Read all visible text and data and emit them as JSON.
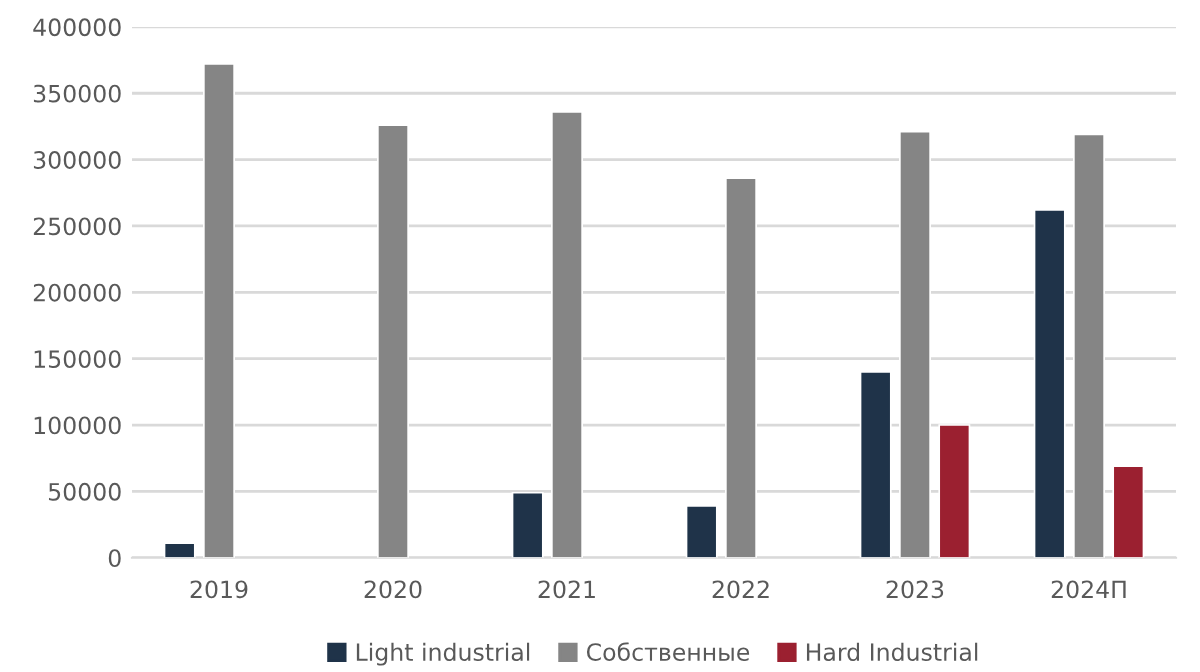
{
  "chart_data": {
    "type": "bar",
    "categories": [
      "2019",
      "2020",
      "2021",
      "2022",
      "2023",
      "2024П"
    ],
    "series": [
      {
        "name": "Light industrial",
        "color": "#1f3349",
        "values": [
          11000,
          null,
          49000,
          39000,
          140000,
          262000
        ]
      },
      {
        "name": "Собственные",
        "color": "#858585",
        "values": [
          372000,
          326000,
          336000,
          286000,
          321000,
          319000
        ]
      },
      {
        "name": "Hard Industrial",
        "color": "#9b2030",
        "values": [
          null,
          null,
          null,
          null,
          100000,
          69000
        ]
      }
    ],
    "ylim": [
      0,
      400000
    ],
    "yticks": [
      0,
      50000,
      100000,
      150000,
      200000,
      250000,
      300000,
      350000,
      400000
    ],
    "grid": "y",
    "legend": "bottom"
  }
}
